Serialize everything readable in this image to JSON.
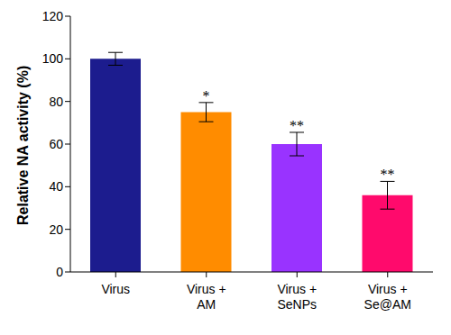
{
  "chart_data": {
    "type": "bar",
    "y_label": "Relative NA activity (%)",
    "categories": [
      "Virus",
      "Virus + AM",
      "Virus + SeNPs",
      "Virus + Se@AM"
    ],
    "values": [
      100,
      75,
      60,
      36
    ],
    "errors": [
      3,
      4.5,
      5.5,
      6.5
    ],
    "significance": [
      null,
      "*",
      "**",
      "**"
    ],
    "colors": [
      "#1c1c8e",
      "#ff8c00",
      "#9933ff",
      "#ff0a6c"
    ],
    "ylim": [
      0,
      120
    ],
    "yticks": [
      0,
      20,
      40,
      60,
      80,
      100,
      120
    ],
    "grid": false
  }
}
